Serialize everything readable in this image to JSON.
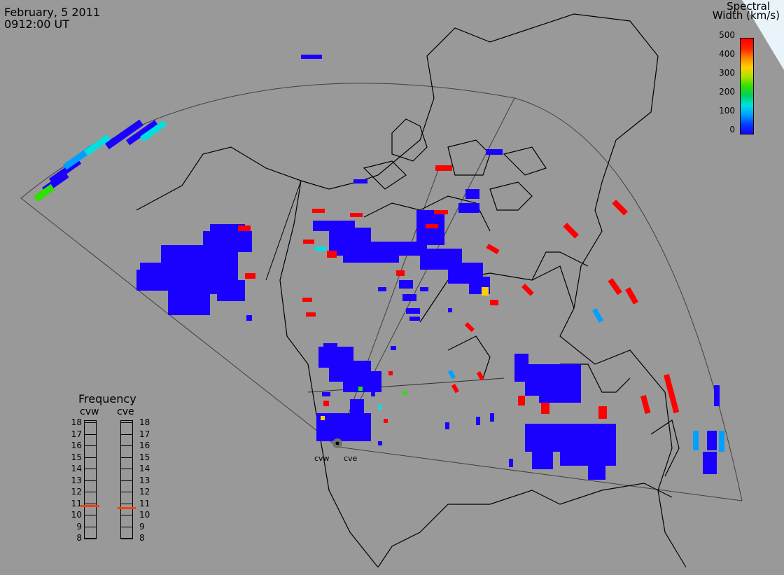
{
  "header": {
    "date": "February, 5 2011",
    "time": "0912:00 UT"
  },
  "colorbar": {
    "title_line1": "Spectral",
    "title_line2": "Width (km/s)",
    "ticks": [
      "500",
      "400",
      "300",
      "200",
      "100",
      "0"
    ],
    "colors": [
      "#1a00ff",
      "#00a0ff",
      "#00e0e0",
      "#30e000",
      "#ffd000",
      "#ff8000",
      "#ff0000"
    ]
  },
  "frequency": {
    "title": "Frequency",
    "stations": [
      "cvw",
      "cve"
    ],
    "ticks": [
      "18",
      "17",
      "16",
      "15",
      "14",
      "13",
      "12",
      "11",
      "10",
      "9",
      "8"
    ],
    "cvw_value_mhz": 10.8,
    "cve_value_mhz": 10.6,
    "marker_color": "#ff4000"
  },
  "sites": [
    "cvw",
    "cve"
  ],
  "colors": {
    "background": "#999999",
    "coast": "#000000",
    "fov": "#303030",
    "echo_low": "#1a00ff",
    "echo_high": "#ff0000"
  }
}
